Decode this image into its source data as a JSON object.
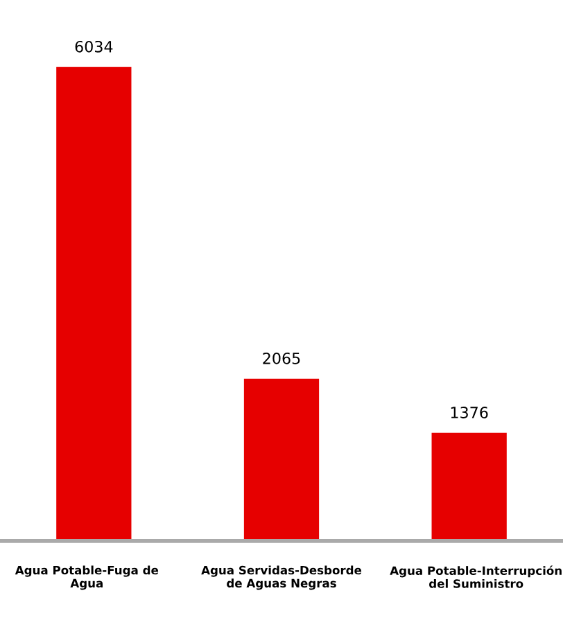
{
  "chart_data": {
    "type": "bar",
    "categories": [
      "Agua Potable-Fuga de Agua",
      "Agua Servidas-Desborde de Aguas Negras",
      "Agua Potable-Interrupción del Suministro"
    ],
    "values": [
      6034,
      2065,
      1376
    ],
    "color": "#e60000",
    "data_labels": true,
    "grid": false,
    "legend": false
  }
}
